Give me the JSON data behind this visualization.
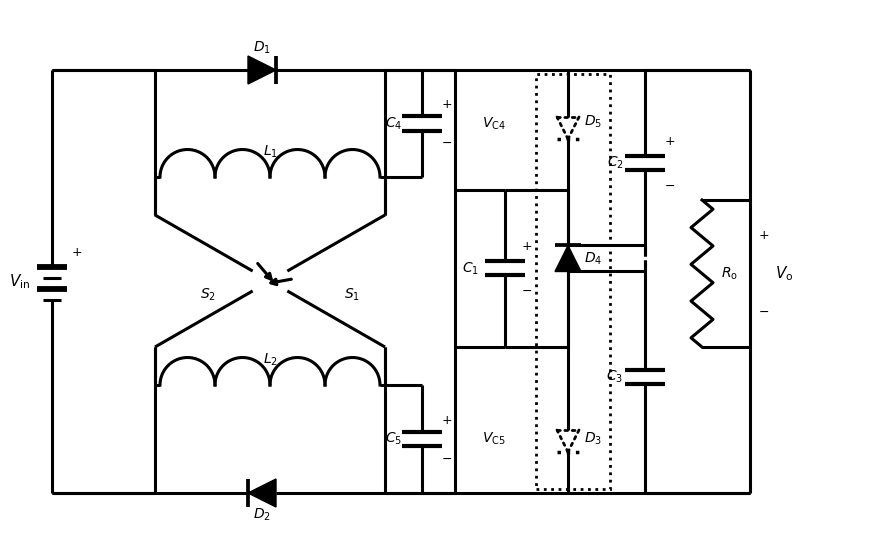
{
  "bg": "#ffffff",
  "lc": "#000000",
  "lw": 2.2,
  "dlw": 2.0,
  "figsize": [
    8.73,
    5.55
  ],
  "dpi": 100
}
